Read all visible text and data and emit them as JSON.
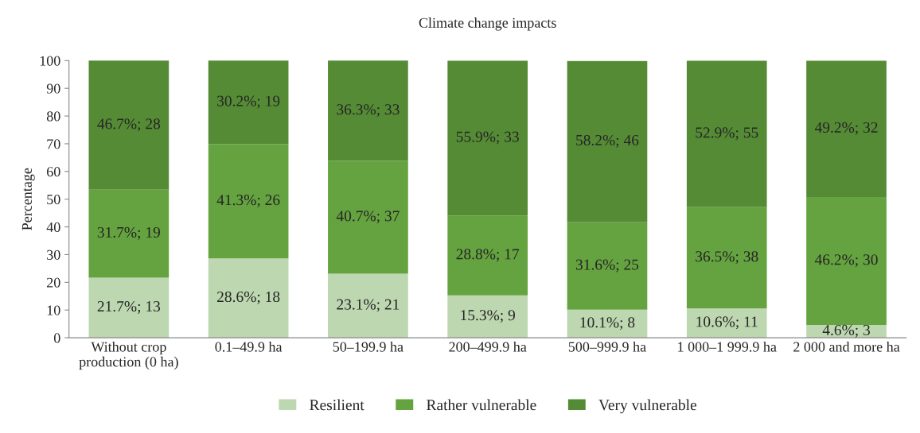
{
  "chart_data": {
    "type": "bar",
    "title": "Climate change impacts",
    "ylabel": "Percentage",
    "stacked": true,
    "categories": [
      "Without crop\nproduction (0 ha)",
      "0.1–49.9 ha",
      "50–199.9 ha",
      "200–499.9 ha",
      "500–999.9 ha",
      "1 000–1 999.9 ha",
      "2 000 and more ha"
    ],
    "series": [
      {
        "name": "Resilient",
        "color": "#bdd7b0",
        "values": [
          21.7,
          28.6,
          23.1,
          15.3,
          10.1,
          10.6,
          4.6
        ],
        "value_labels": [
          "21.7%; 13",
          "28.6%; 18",
          "23.1%; 21",
          "15.3%; 9",
          "10.1%; 8",
          "10.6%; 11",
          "4.6%; 3"
        ]
      },
      {
        "name": "Rather vulnerable",
        "color": "#64a33f",
        "values": [
          31.7,
          41.3,
          40.7,
          28.8,
          31.6,
          36.5,
          46.2
        ],
        "value_labels": [
          "31.7%; 19",
          "41.3%; 26",
          "40.7%; 37",
          "28.8%; 17",
          "31.6%; 25",
          "36.5%; 38",
          "46.2%; 30"
        ]
      },
      {
        "name": "Very vulnerable",
        "color": "#558b35",
        "values": [
          46.7,
          30.2,
          36.3,
          55.9,
          58.2,
          52.9,
          49.2
        ],
        "value_labels": [
          "46.7%; 28",
          "30.2%; 19",
          "36.3%; 33",
          "55.9%; 33",
          "58.2%; 46",
          "52.9%; 55",
          "49.2%; 32"
        ]
      }
    ],
    "ylim": [
      0,
      100
    ],
    "yticks": [
      0,
      10,
      20,
      30,
      40,
      50,
      60,
      70,
      80,
      90,
      100
    ],
    "grid": false,
    "legend": "bottom"
  }
}
